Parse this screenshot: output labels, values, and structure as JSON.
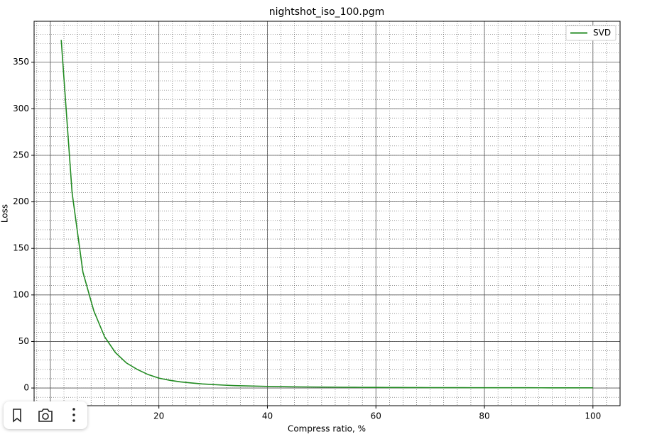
{
  "chart_data": {
    "type": "line",
    "title": "nightshot_iso_100.pgm",
    "x_label": "Compress ratio, %",
    "y_label": "Loss",
    "x": [
      2,
      4,
      6,
      8,
      10,
      12,
      14,
      16,
      18,
      20,
      22,
      24,
      26,
      28,
      30,
      32,
      34,
      36,
      38,
      40,
      42,
      44,
      46,
      48,
      50,
      52,
      54,
      56,
      58,
      60,
      62,
      64,
      66,
      68,
      70,
      72,
      74,
      76,
      78,
      80,
      82,
      84,
      86,
      88,
      90,
      92,
      94,
      96,
      98,
      100
    ],
    "series": [
      {
        "name": "SVD",
        "color": "#228b22",
        "values": [
          374,
          210,
          124.5,
          83,
          55,
          38,
          27,
          20,
          14.5,
          10.6,
          8.3,
          6.6,
          5.4,
          4.4,
          3.7,
          3.1,
          2.6,
          2.3,
          2.0,
          1.7,
          1.5,
          1.35,
          1.2,
          1.1,
          1.0,
          0.9,
          0.82,
          0.75,
          0.7,
          0.65,
          0.6,
          0.55,
          0.5,
          0.47,
          0.44,
          0.41,
          0.38,
          0.36,
          0.34,
          0.32,
          0.3,
          0.28,
          0.27,
          0.25,
          0.24,
          0.23,
          0.22,
          0.21,
          0.2,
          0.19
        ]
      }
    ],
    "xlim": [
      -3,
      105
    ],
    "ylim": [
      -19,
      394
    ],
    "xticks": [
      0,
      20,
      40,
      60,
      80,
      100
    ],
    "yticks": [
      0,
      50,
      100,
      150,
      200,
      250,
      300,
      350
    ],
    "grid": true,
    "minor_grid": true,
    "legend": "upper right"
  }
}
